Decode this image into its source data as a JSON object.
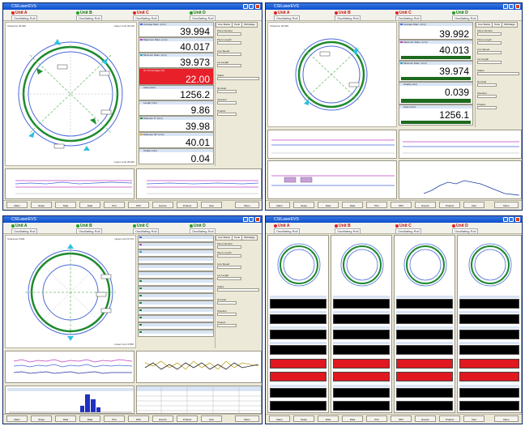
{
  "app_title": "CSILaserEVS",
  "units": {
    "a": "Unit A",
    "b": "Unit B",
    "c": "Unit C",
    "d": "Unit D",
    "oscillating_label": "Oscillating Roll"
  },
  "colors": {
    "unit_a": "#e02020",
    "unit_b": "#20a020",
    "unit_c": "#e02020",
    "unit_d": "#20a020",
    "gauge_green": "#1e8a2e",
    "gauge_blue": "#4a68d8",
    "cyan_marker": "#30c0e0"
  },
  "panel1": {
    "tolerance": "Tolerance 40.000",
    "upper_limit": "Upper Limit 40.100",
    "lower_limit": "Lower Limit 39.900",
    "values": [
      "39.994",
      "40.017",
      "39.973",
      "22.00",
      "1256.2",
      "9.86",
      "39.98",
      "40.01",
      "0.04"
    ],
    "headers": [
      "Average Diam. (mm)",
      "Maximum Diam. (mm)",
      "Minimum Diam. (mm)",
      "Ov. Percentage (%)",
      "Area (mm²)",
      "Length (mm)",
      "Diameter 0° (mm)",
      "Diameter 90° (mm)",
      "Ovality (mm)"
    ]
  },
  "panel2": {
    "tolerance": "Tolerance 40.000",
    "values": [
      "39.992",
      "40.013",
      "39.974",
      "0.039",
      "1256.1"
    ],
    "headers": [
      "Average Diam. (mm)",
      "Maximum Diam. (mm)",
      "Minimum Diam. (mm)",
      "Ovality (mm)",
      "Area (mm²)"
    ]
  },
  "panel3": {
    "tolerance": "Tolerance 5.000",
    "upper_limit": "Upper Limit 5.170",
    "lower_limit": "Lower Limit 4.830"
  },
  "side_tabs": [
    "Line Status",
    "Tools",
    "Shrinkage"
  ],
  "side_labels": [
    "Piece Number",
    "Piece Length",
    "Line Speed",
    "Lot Length",
    "Status",
    "Nominal",
    "Operator",
    "Product"
  ],
  "bottom_buttons": [
    "Alarm",
    "Setup",
    "Data",
    "Data",
    "Plot",
    "SPC",
    "Events",
    "Product",
    "User",
    "Menu"
  ],
  "trend_axis": [
    "0",
    "10",
    "20",
    "30",
    "40",
    "50",
    "60",
    "70",
    "80",
    "90",
    "100"
  ]
}
